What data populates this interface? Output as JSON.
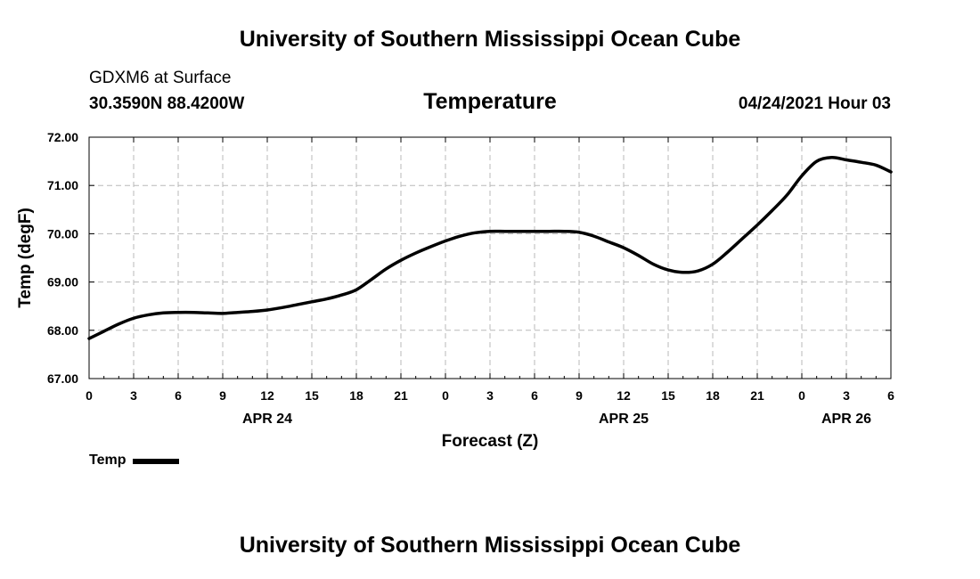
{
  "header": {
    "title": "University of Southern Mississippi Ocean Cube",
    "station": "GDXM6 at Surface",
    "coords": "30.3590N  88.4200W",
    "variable": "Temperature",
    "datetime": "04/24/2021 Hour 03"
  },
  "footer": {
    "title": "University of Southern Mississippi Ocean Cube"
  },
  "legend": {
    "label": "Temp"
  },
  "chart_data": {
    "type": "line",
    "title": "Temperature",
    "xlabel": "Forecast (Z)",
    "ylabel": "Temp (degF)",
    "xlim": [
      0,
      54
    ],
    "ylim": [
      67,
      72
    ],
    "yticks": [
      "67.00",
      "68.00",
      "69.00",
      "70.00",
      "71.00",
      "72.00"
    ],
    "xticks": [
      {
        "x": 0,
        "label": "0"
      },
      {
        "x": 3,
        "label": "3"
      },
      {
        "x": 6,
        "label": "6"
      },
      {
        "x": 9,
        "label": "9"
      },
      {
        "x": 12,
        "label": "12"
      },
      {
        "x": 15,
        "label": "15"
      },
      {
        "x": 18,
        "label": "18"
      },
      {
        "x": 21,
        "label": "21"
      },
      {
        "x": 24,
        "label": "0"
      },
      {
        "x": 27,
        "label": "3"
      },
      {
        "x": 30,
        "label": "6"
      },
      {
        "x": 33,
        "label": "9"
      },
      {
        "x": 36,
        "label": "12"
      },
      {
        "x": 39,
        "label": "15"
      },
      {
        "x": 42,
        "label": "18"
      },
      {
        "x": 45,
        "label": "21"
      },
      {
        "x": 48,
        "label": "0"
      },
      {
        "x": 51,
        "label": "3"
      },
      {
        "x": 54,
        "label": "6"
      }
    ],
    "day_labels": [
      {
        "x": 12,
        "label": "APR 24"
      },
      {
        "x": 36,
        "label": "APR 25"
      },
      {
        "x": 51,
        "label": "APR 26"
      }
    ],
    "grid": true,
    "series": [
      {
        "name": "Temp",
        "x": [
          0,
          1,
          2,
          3,
          4,
          5,
          6,
          7,
          8,
          9,
          10,
          11,
          12,
          13,
          14,
          15,
          16,
          17,
          18,
          19,
          20,
          21,
          22,
          23,
          24,
          25,
          26,
          27,
          28,
          29,
          30,
          31,
          32,
          33,
          34,
          35,
          36,
          37,
          38,
          39,
          40,
          41,
          42,
          43,
          44,
          45,
          46,
          47,
          48,
          49,
          50,
          51,
          52,
          53,
          54
        ],
        "values": [
          67.83,
          67.98,
          68.13,
          68.25,
          68.32,
          68.36,
          68.37,
          68.37,
          68.36,
          68.35,
          68.37,
          68.39,
          68.42,
          68.47,
          68.53,
          68.59,
          68.65,
          68.73,
          68.84,
          69.05,
          69.27,
          69.45,
          69.6,
          69.73,
          69.85,
          69.95,
          70.02,
          70.05,
          70.05,
          70.05,
          70.05,
          70.05,
          70.05,
          70.03,
          69.95,
          69.83,
          69.71,
          69.55,
          69.37,
          69.25,
          69.2,
          69.23,
          69.37,
          69.62,
          69.9,
          70.18,
          70.48,
          70.8,
          71.2,
          71.5,
          71.58,
          71.53,
          71.48,
          71.42,
          71.28
        ]
      }
    ]
  }
}
